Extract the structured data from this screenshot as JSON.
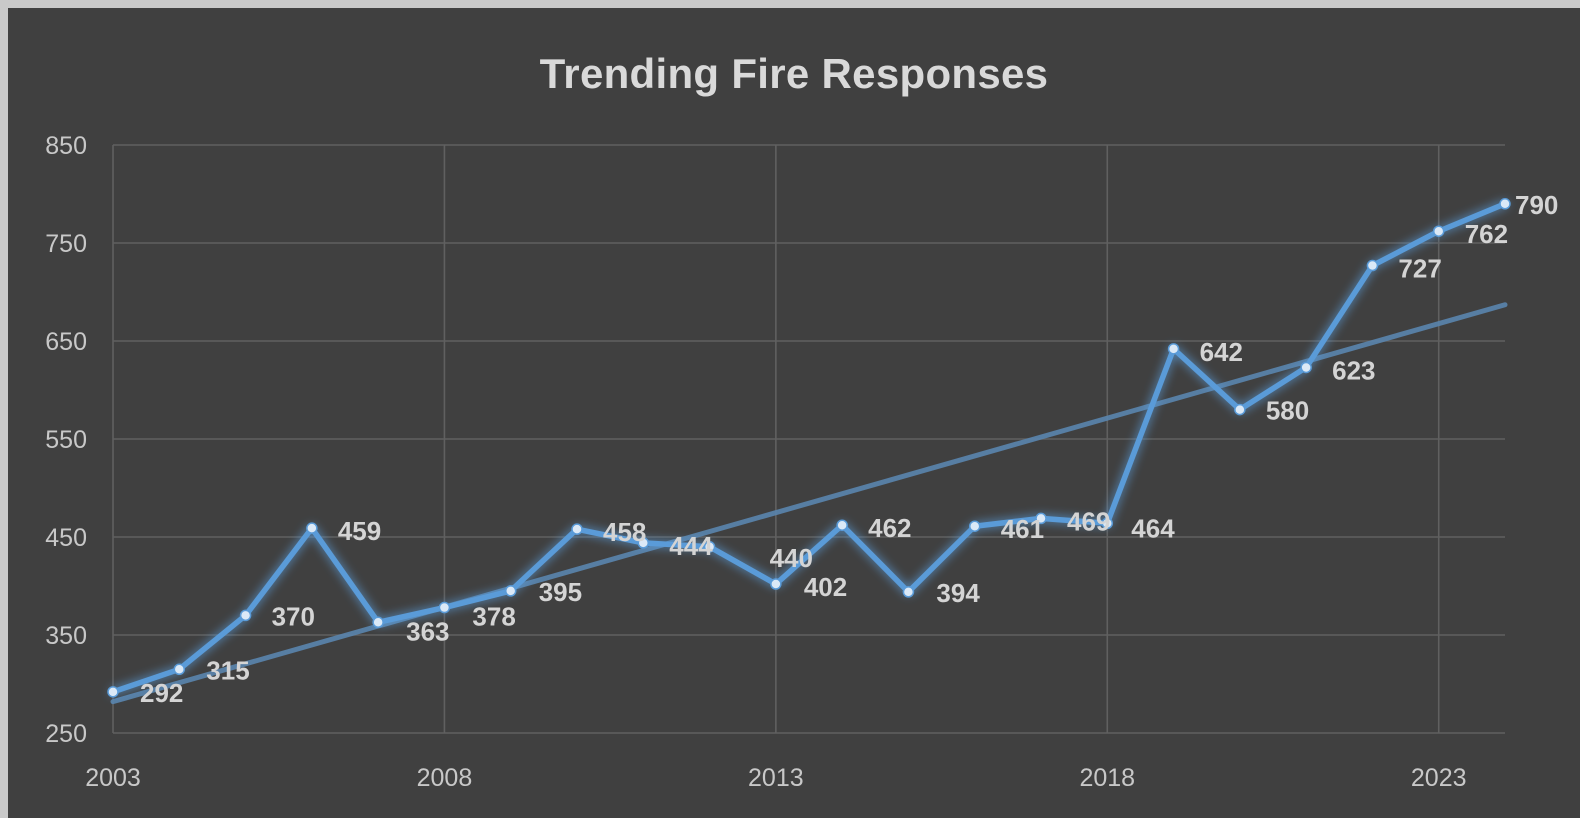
{
  "chart_data": {
    "type": "line",
    "title": "Trending Fire Responses",
    "xlabel": "",
    "ylabel": "",
    "x": [
      2003,
      2004,
      2005,
      2006,
      2007,
      2008,
      2009,
      2010,
      2011,
      2012,
      2013,
      2014,
      2015,
      2016,
      2017,
      2018,
      2019,
      2020,
      2021,
      2022,
      2023,
      2024
    ],
    "series": [
      {
        "name": "",
        "values": [
          292,
          315,
          370,
          459,
          363,
          378,
          395,
          458,
          444,
          440,
          402,
          462,
          394,
          461,
          469,
          464,
          642,
          580,
          623,
          727,
          762,
          790
        ],
        "data_labels": [
          "292",
          "315",
          "370",
          "459",
          "363",
          "378",
          "395",
          "458",
          "444",
          "440",
          "402",
          "462",
          "394",
          "461",
          "469",
          "464",
          "642",
          "580",
          "623",
          "727",
          "762",
          "790"
        ]
      }
    ],
    "trendline": {
      "type": "linear",
      "start_value": 282,
      "end_value": 687
    },
    "xlim": [
      2003,
      2024
    ],
    "ylim": [
      250,
      850
    ],
    "x_ticks": [
      "2003",
      "2008",
      "2013",
      "2018",
      "2023"
    ],
    "y_ticks": [
      "850",
      "750",
      "650",
      "550",
      "450",
      "350",
      "250"
    ],
    "grid": true,
    "legend": "none",
    "colors": {
      "background": "#404040",
      "frame": "#c9c9c9",
      "line": "#5a9bd8",
      "marker": "#dbe9f7",
      "trendline": "#5a85ae",
      "gridline": "#606060",
      "text": "#d4d4d4"
    }
  }
}
